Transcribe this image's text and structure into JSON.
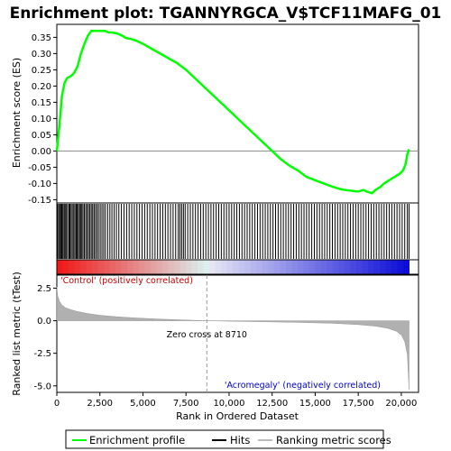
{
  "chart_data": {
    "type": "line",
    "title": "Enrichment plot: TGANNYRGCA_V$TCF11MAFG_01",
    "es_panel": {
      "ylabel": "Enrichment score (ES)",
      "ylim": [
        -0.16,
        0.39
      ],
      "yticks": [
        "0.35",
        "0.30",
        "0.25",
        "0.20",
        "0.15",
        "0.10",
        "0.05",
        "0.00",
        "-0.05",
        "-0.10",
        "-0.15"
      ],
      "series": [
        {
          "name": "Enrichment profile",
          "color": "#00ff00",
          "x": [
            0,
            150,
            300,
            450,
            600,
            800,
            1000,
            1200,
            1400,
            1600,
            1800,
            2000,
            2200,
            2500,
            2800,
            3000,
            3200,
            3500,
            3800,
            4000,
            4300,
            4600,
            5000,
            5500,
            6000,
            6500,
            7000,
            7500,
            8000,
            8500,
            9000,
            9500,
            10000,
            10500,
            11000,
            11500,
            12000,
            12500,
            13000,
            13500,
            14000,
            14500,
            15000,
            15500,
            16000,
            16500,
            17000,
            17500,
            17800,
            18000,
            18300,
            18500,
            18800,
            19000,
            19300,
            19600,
            19900,
            20100,
            20250,
            20350,
            20450
          ],
          "y": [
            0.0,
            0.08,
            0.17,
            0.21,
            0.225,
            0.23,
            0.24,
            0.26,
            0.3,
            0.33,
            0.355,
            0.37,
            0.37,
            0.37,
            0.37,
            0.365,
            0.365,
            0.362,
            0.355,
            0.348,
            0.345,
            0.34,
            0.33,
            0.315,
            0.3,
            0.285,
            0.27,
            0.25,
            0.225,
            0.2,
            0.175,
            0.15,
            0.125,
            0.1,
            0.075,
            0.05,
            0.025,
            0.0,
            -0.025,
            -0.045,
            -0.06,
            -0.08,
            -0.09,
            -0.1,
            -0.11,
            -0.118,
            -0.122,
            -0.125,
            -0.12,
            -0.125,
            -0.13,
            -0.12,
            -0.11,
            -0.1,
            -0.09,
            -0.08,
            -0.07,
            -0.06,
            -0.04,
            -0.01,
            0.005
          ]
        }
      ]
    },
    "hits": {
      "name": "Hits",
      "positions": [
        40,
        110,
        170,
        230,
        290,
        350,
        420,
        480,
        540,
        620,
        700,
        760,
        830,
        900,
        980,
        1050,
        1120,
        1180,
        1250,
        1320,
        1380,
        1450,
        1520,
        1600,
        1680,
        1760,
        1840,
        1920,
        2000,
        2080,
        2160,
        2240,
        2330,
        2420,
        2520,
        2620,
        2720,
        2820,
        2950,
        3080,
        3200,
        3330,
        3460,
        3600,
        3750,
        3900,
        4050,
        4200,
        4350,
        4500,
        4650,
        4800,
        4950,
        5100,
        5250,
        5400,
        5550,
        5700,
        5850,
        6000,
        6150,
        6300,
        6450,
        6600,
        6750,
        6900,
        7050,
        7150,
        7250,
        7350,
        7450,
        7600,
        7750,
        7900,
        8050,
        8200,
        8350,
        8500,
        8650,
        8800,
        8950,
        9100,
        9250,
        9400,
        9550,
        9700,
        9850,
        10000,
        10150,
        10300,
        10450,
        10600,
        10750,
        10900,
        11050,
        11200,
        11350,
        11500,
        11650,
        11800,
        11950,
        12100,
        12250,
        12400,
        12550,
        12700,
        12850,
        13000,
        13150,
        13300,
        13450,
        13600,
        13750,
        13900,
        14050,
        14200,
        14350,
        14500,
        14650,
        14800,
        14950,
        15100,
        15250,
        15400,
        15550,
        15700,
        15850,
        16000,
        16150,
        16300,
        16450,
        16600,
        16750,
        16900,
        17050,
        17200,
        17350,
        17500,
        17650,
        17800,
        17950,
        18100,
        18250,
        18400,
        18550,
        18700,
        18850,
        19000,
        19150,
        19300,
        19450,
        19600,
        19750,
        19900,
        20050,
        20200,
        20350,
        20450
      ],
      "color": "#000000"
    },
    "metric_panel": {
      "ylabel": "Ranked list metric (tTest)",
      "ylim": [
        -5.5,
        3.5
      ],
      "yticks": [
        "2.5",
        "0.0",
        "-2.5",
        "-5.0"
      ],
      "series": [
        {
          "name": "Ranking metric scores",
          "color": "#b0b0b0",
          "x": [
            0,
            50,
            150,
            300,
            500,
            800,
            1200,
            1800,
            2500,
            3500,
            4500,
            6000,
            7500,
            8710,
            10000,
            12000,
            14000,
            16000,
            17500,
            18500,
            19200,
            19700,
            20000,
            20200,
            20350,
            20450
          ],
          "y": [
            2.6,
            1.9,
            1.5,
            1.2,
            1.0,
            0.85,
            0.7,
            0.55,
            0.42,
            0.3,
            0.22,
            0.12,
            0.05,
            0.0,
            -0.04,
            -0.08,
            -0.13,
            -0.2,
            -0.3,
            -0.42,
            -0.58,
            -0.8,
            -1.1,
            -1.6,
            -2.6,
            -5.3
          ]
        }
      ],
      "zero_cross_label": "Zero cross at 8710",
      "zero_cross_x": 8710,
      "positive_label": "'Control' (positively correlated)",
      "negative_label": "'Acromegaly' (negatively correlated)"
    },
    "xaxis": {
      "xlabel": "Rank in Ordered Dataset",
      "xlim": [
        0,
        21000
      ],
      "xticks": [
        "0",
        "2,500",
        "5,000",
        "7,500",
        "10,000",
        "12,500",
        "15,000",
        "17,500",
        "20,000"
      ],
      "xtick_values": [
        0,
        2500,
        5000,
        7500,
        10000,
        12500,
        15000,
        17500,
        20000
      ]
    },
    "legend": {
      "placement": "bottom",
      "entries": [
        "Enrichment profile",
        "Hits",
        "Ranking metric scores"
      ]
    }
  }
}
